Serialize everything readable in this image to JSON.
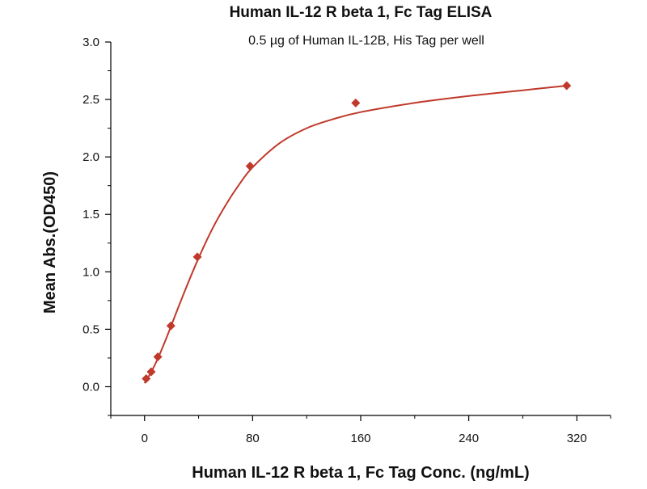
{
  "chart_data": {
    "type": "scatter",
    "title": "Human IL-12 R beta 1, Fc Tag ELISA",
    "subtitle": "0.5 µg of Human IL-12B, His Tag per well",
    "xlabel": "Human IL-12 R beta 1, Fc Tag Conc. (ng/mL)",
    "ylabel": "Mean Abs.(OD450)",
    "xlim": [
      -25,
      345
    ],
    "ylim": [
      -0.25,
      3.0
    ],
    "xticks": [
      0,
      80,
      160,
      240,
      320
    ],
    "xtick_labels": [
      "0",
      "80",
      "160",
      "240",
      "320"
    ],
    "yticks": [
      0.0,
      0.5,
      1.0,
      1.5,
      2.0,
      2.5,
      3.0
    ],
    "ytick_labels": [
      "0.0",
      "0.5",
      "1.0",
      "1.5",
      "2.0",
      "2.5",
      "3.0"
    ],
    "grid": false,
    "series": [
      {
        "marker": "diamond",
        "color": "#c0392b",
        "points": [
          {
            "x": 1.2,
            "y": 0.07
          },
          {
            "x": 4.9,
            "y": 0.13
          },
          {
            "x": 9.8,
            "y": 0.26
          },
          {
            "x": 19.5,
            "y": 0.53
          },
          {
            "x": 39.1,
            "y": 1.13
          },
          {
            "x": 78.1,
            "y": 1.92
          },
          {
            "x": 156.3,
            "y": 2.47
          },
          {
            "x": 312.5,
            "y": 2.62
          }
        ]
      }
    ],
    "fit_curve": {
      "color": "#c0392b",
      "points": [
        {
          "x": 0,
          "y": 0.03
        },
        {
          "x": 5,
          "y": 0.13
        },
        {
          "x": 10,
          "y": 0.25
        },
        {
          "x": 15,
          "y": 0.39
        },
        {
          "x": 20,
          "y": 0.54
        },
        {
          "x": 30,
          "y": 0.84
        },
        {
          "x": 40,
          "y": 1.12
        },
        {
          "x": 50,
          "y": 1.37
        },
        {
          "x": 60,
          "y": 1.58
        },
        {
          "x": 70,
          "y": 1.76
        },
        {
          "x": 80,
          "y": 1.91
        },
        {
          "x": 100,
          "y": 2.12
        },
        {
          "x": 120,
          "y": 2.25
        },
        {
          "x": 140,
          "y": 2.33
        },
        {
          "x": 160,
          "y": 2.39
        },
        {
          "x": 200,
          "y": 2.47
        },
        {
          "x": 240,
          "y": 2.53
        },
        {
          "x": 280,
          "y": 2.58
        },
        {
          "x": 312.5,
          "y": 2.62
        }
      ]
    }
  }
}
